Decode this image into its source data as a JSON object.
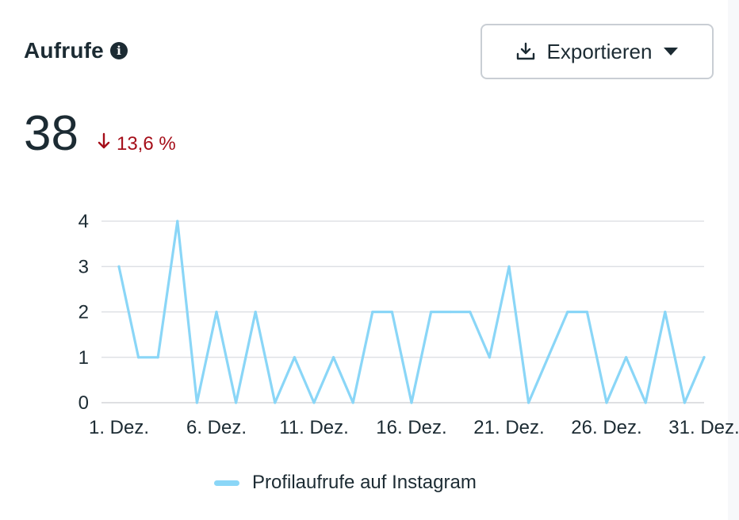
{
  "header": {
    "title": "Aufrufe",
    "info_icon": "info-icon"
  },
  "toolbar": {
    "export_label": "Exportieren",
    "export_icon": "download-icon",
    "dropdown_icon": "caret-down-icon"
  },
  "metric": {
    "value": "38",
    "delta": "13,6 %",
    "delta_direction": "down",
    "delta_color": "#a50e19"
  },
  "chart_data": {
    "type": "line",
    "title": "",
    "xlabel": "",
    "ylabel": "",
    "ylim": [
      0,
      4
    ],
    "yticks": [
      "0",
      "1",
      "2",
      "3",
      "4"
    ],
    "grid": true,
    "legend_position": "bottom",
    "x": [
      "1. Dez.",
      "2. Dez.",
      "3. Dez.",
      "4. Dez.",
      "5. Dez.",
      "6. Dez.",
      "7. Dez.",
      "8. Dez.",
      "9. Dez.",
      "10. Dez.",
      "11. Dez.",
      "12. Dez.",
      "13. Dez.",
      "14. Dez.",
      "15. Dez.",
      "16. Dez.",
      "17. Dez.",
      "18. Dez.",
      "19. Dez.",
      "20. Dez.",
      "21. Dez.",
      "22. Dez.",
      "23. Dez.",
      "24. Dez.",
      "25. Dez.",
      "26. Dez.",
      "27. Dez.",
      "28. Dez.",
      "29. Dez.",
      "30. Dez.",
      "31. Dez."
    ],
    "xtick_labels": [
      "1. Dez.",
      "6. Dez.",
      "11. Dez.",
      "16. Dez.",
      "21. Dez.",
      "26. Dez.",
      "31. Dez."
    ],
    "series": [
      {
        "name": "Profilaufrufe auf Instagram",
        "color": "#8ad6f7",
        "values": [
          3,
          1,
          1,
          4,
          0,
          2,
          0,
          2,
          0,
          1,
          0,
          1,
          0,
          2,
          2,
          0,
          2,
          2,
          2,
          1,
          3,
          0,
          1,
          2,
          2,
          0,
          1,
          0,
          2,
          0,
          1
        ]
      }
    ]
  }
}
